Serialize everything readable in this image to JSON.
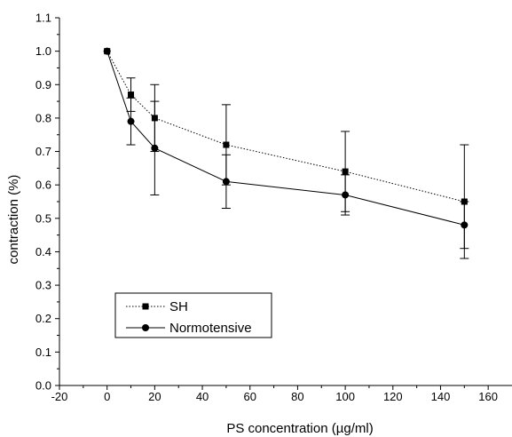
{
  "chart_data": {
    "type": "line",
    "title": "",
    "xlabel": "PS concentration (µg/ml)",
    "ylabel": "contraction (%)",
    "xlim": [
      -20,
      170
    ],
    "ylim": [
      0.0,
      1.1
    ],
    "xticks": [
      "-20",
      "0",
      "20",
      "40",
      "60",
      "80",
      "100",
      "120",
      "140",
      "160"
    ],
    "yticks": [
      "0.0",
      "0.1",
      "0.2",
      "0.3",
      "0.4",
      "0.5",
      "0.6",
      "0.7",
      "0.8",
      "0.9",
      "1.0",
      "1.1"
    ],
    "grid": false,
    "legend_position": "bottom-left",
    "series": [
      {
        "name": "SH",
        "marker": "square",
        "line_style": "dotted",
        "color": "#000000",
        "x": [
          0,
          10,
          20,
          50,
          100,
          150
        ],
        "y": [
          1.0,
          0.87,
          0.8,
          0.72,
          0.64,
          0.55
        ],
        "error": [
          0,
          0.05,
          0.1,
          0.12,
          0.12,
          0.17
        ]
      },
      {
        "name": "Normotensive",
        "marker": "circle",
        "line_style": "solid",
        "color": "#000000",
        "x": [
          0,
          10,
          20,
          50,
          100,
          150
        ],
        "y": [
          1.0,
          0.79,
          0.71,
          0.61,
          0.57,
          0.48
        ],
        "error": [
          0,
          0.07,
          0.14,
          0.08,
          0.06,
          0.07
        ]
      }
    ]
  }
}
